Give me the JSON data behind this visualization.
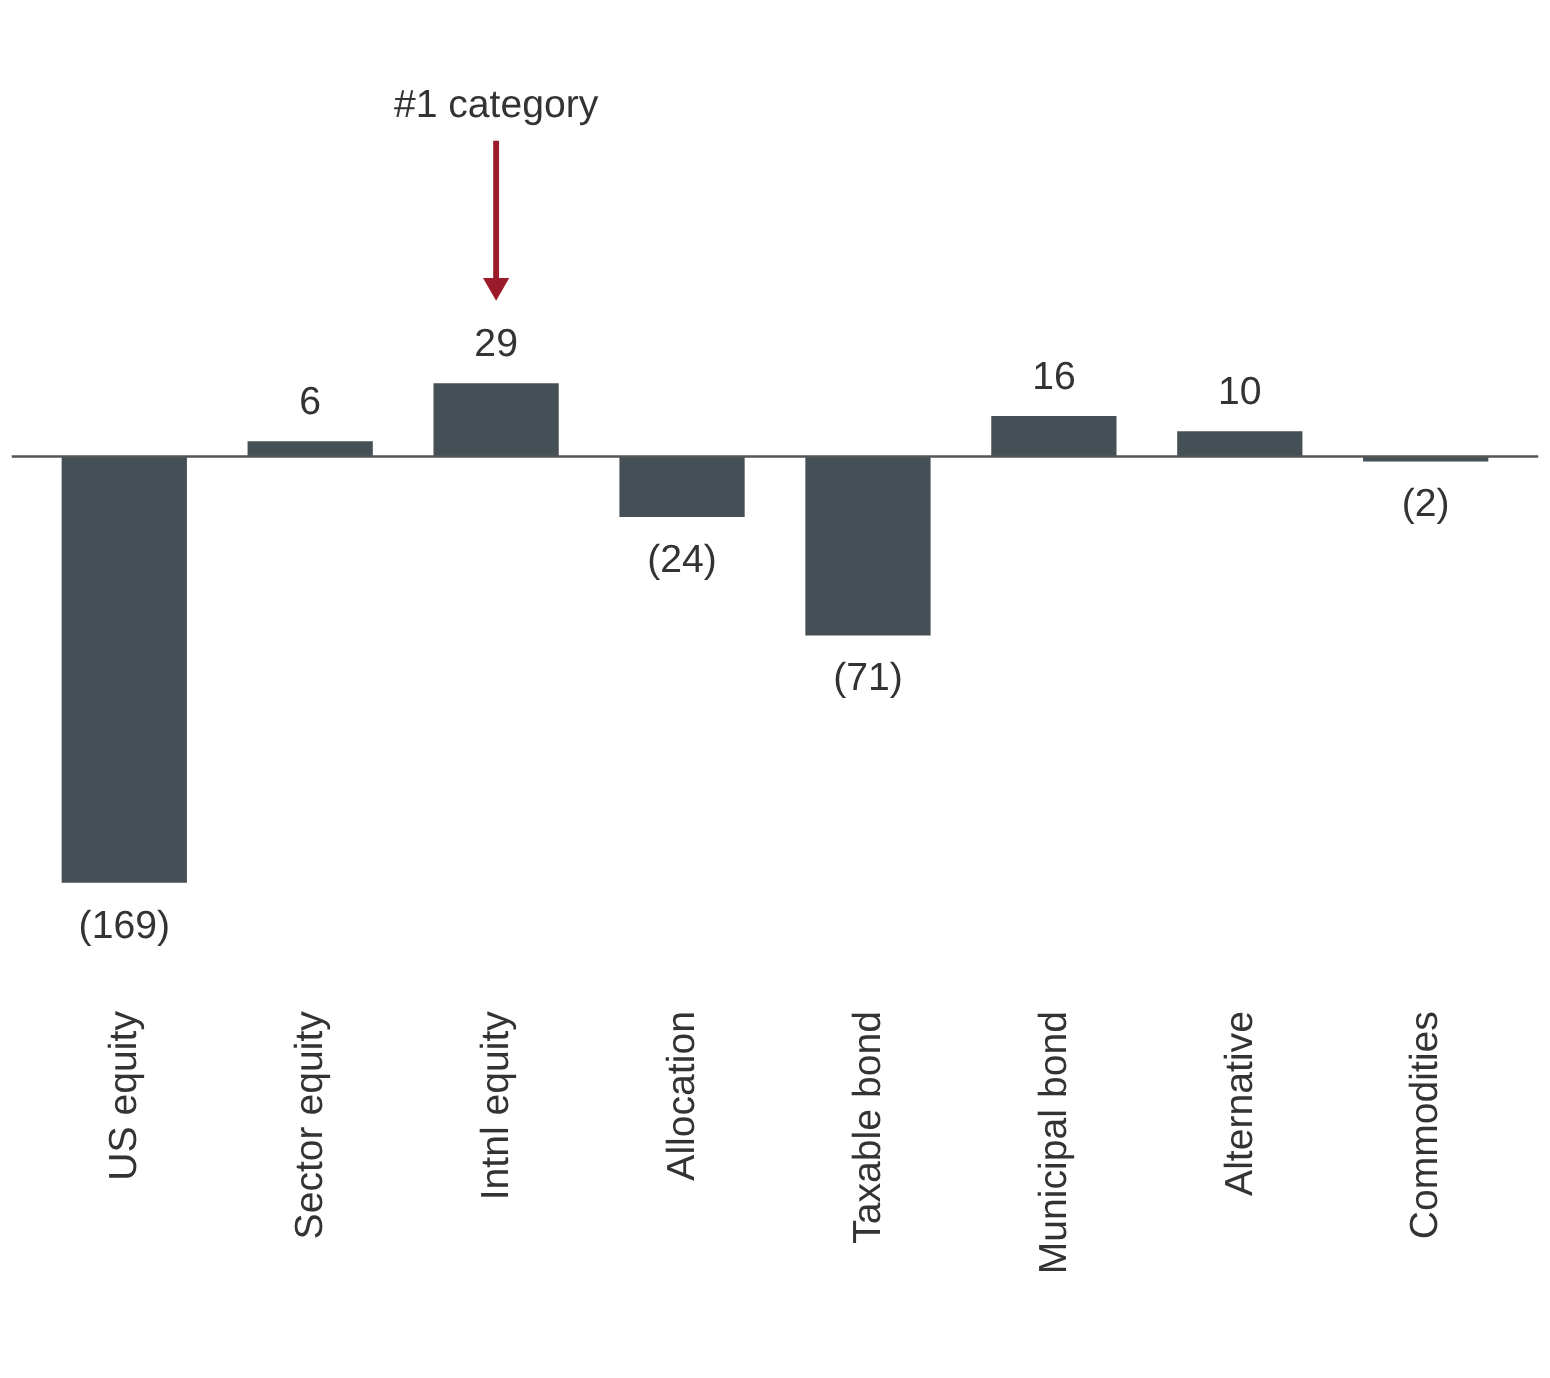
{
  "chart_data": {
    "type": "bar",
    "categories": [
      "US equity",
      "Sector equity",
      "Intnl equity",
      "Allocation",
      "Taxable bond",
      "Municipal bond",
      "Alternative",
      "Commodities"
    ],
    "values": [
      -169,
      6,
      29,
      -24,
      -71,
      16,
      10,
      -2
    ],
    "value_labels": [
      "(169)",
      "6",
      "29",
      "(24)",
      "(71)",
      "16",
      "10",
      "(2)"
    ],
    "color": "#444f56",
    "annotations": [
      "#1 category"
    ],
    "grid": false
  }
}
